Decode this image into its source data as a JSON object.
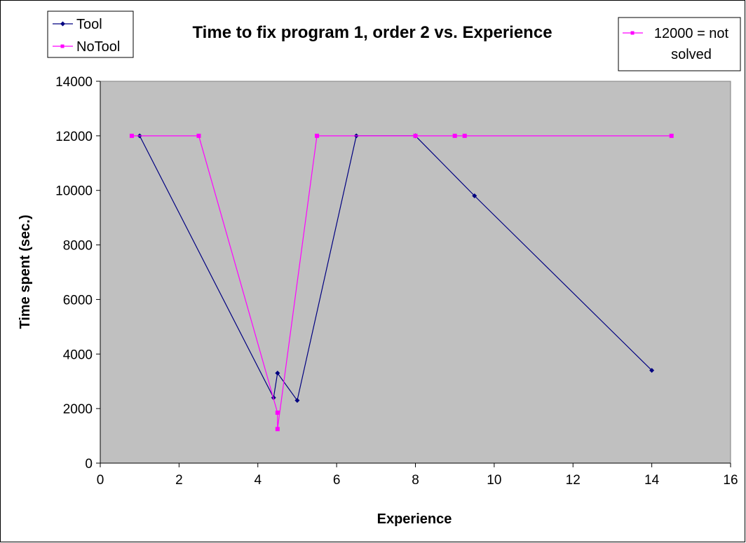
{
  "chart_data": {
    "type": "line",
    "title": "Time to fix program 1, order 2 vs. Experience",
    "xlabel": "Experience",
    "ylabel": "Time spent (sec.)",
    "xlim": [
      0,
      16
    ],
    "ylim": [
      0,
      14000
    ],
    "xticks": [
      0,
      2,
      4,
      6,
      8,
      10,
      12,
      14,
      16
    ],
    "yticks": [
      0,
      2000,
      4000,
      6000,
      8000,
      10000,
      12000,
      14000
    ],
    "grid": false,
    "legend_position": "top-left",
    "series": [
      {
        "name": "Tool",
        "color": "#000080",
        "marker": "diamond",
        "x": [
          1,
          4.4,
          4.5,
          5,
          6.5,
          8,
          9.5,
          14
        ],
        "y": [
          12000,
          2400,
          3300,
          2300,
          12000,
          12000,
          9800,
          3400
        ]
      },
      {
        "name": "NoTool",
        "color": "#ff00ff",
        "marker": "square",
        "x": [
          0.8,
          2.5,
          4.5,
          4.5,
          5.5,
          8,
          9,
          9.25,
          14.5
        ],
        "y": [
          12000,
          12000,
          1850,
          1250,
          12000,
          12000,
          12000,
          12000,
          12000
        ]
      }
    ],
    "annotation_legend": {
      "text_line1": "12000 = not",
      "text_line2": "solved",
      "color": "#ff00ff",
      "marker": "square",
      "position": "top-right"
    },
    "plot_background": "#c0c0c0"
  }
}
